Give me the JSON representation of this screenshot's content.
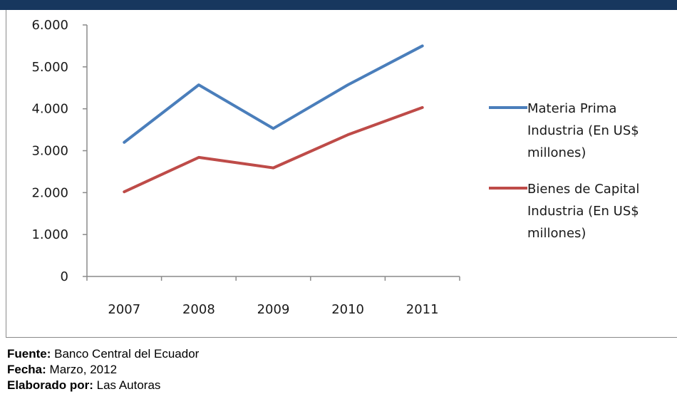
{
  "colors": {
    "top_bar": "#17375e",
    "series_1": "#4a7ebb",
    "series_2": "#be4b48"
  },
  "chart_data": {
    "type": "line",
    "x": [
      "2007",
      "2008",
      "2009",
      "2010",
      "2011"
    ],
    "ylim": [
      0,
      6000
    ],
    "y_ticks": [
      "0",
      "1.000",
      "2.000",
      "3.000",
      "4.000",
      "5.000",
      "6.000"
    ],
    "y_tick_values": [
      0,
      1000,
      2000,
      3000,
      4000,
      5000,
      6000
    ],
    "grid": false,
    "legend_position": "right",
    "series": [
      {
        "name_lines": [
          "Materia Prima",
          "Industria (En US$",
          "millones)"
        ],
        "color": "#4a7ebb",
        "values": [
          3200,
          4570,
          3530,
          4570,
          5500
        ]
      },
      {
        "name_lines": [
          "Bienes de Capital",
          "Industria (En US$",
          "millones)"
        ],
        "color": "#be4b48",
        "values": [
          2020,
          2840,
          2590,
          3380,
          4030
        ]
      }
    ]
  },
  "footer": {
    "source_label": "Fuente:",
    "source_value": "Banco Central del Ecuador",
    "date_label": "Fecha:",
    "date_value": "Marzo, 2012",
    "author_label": "Elaborado por:",
    "author_value": "Las Autoras"
  }
}
